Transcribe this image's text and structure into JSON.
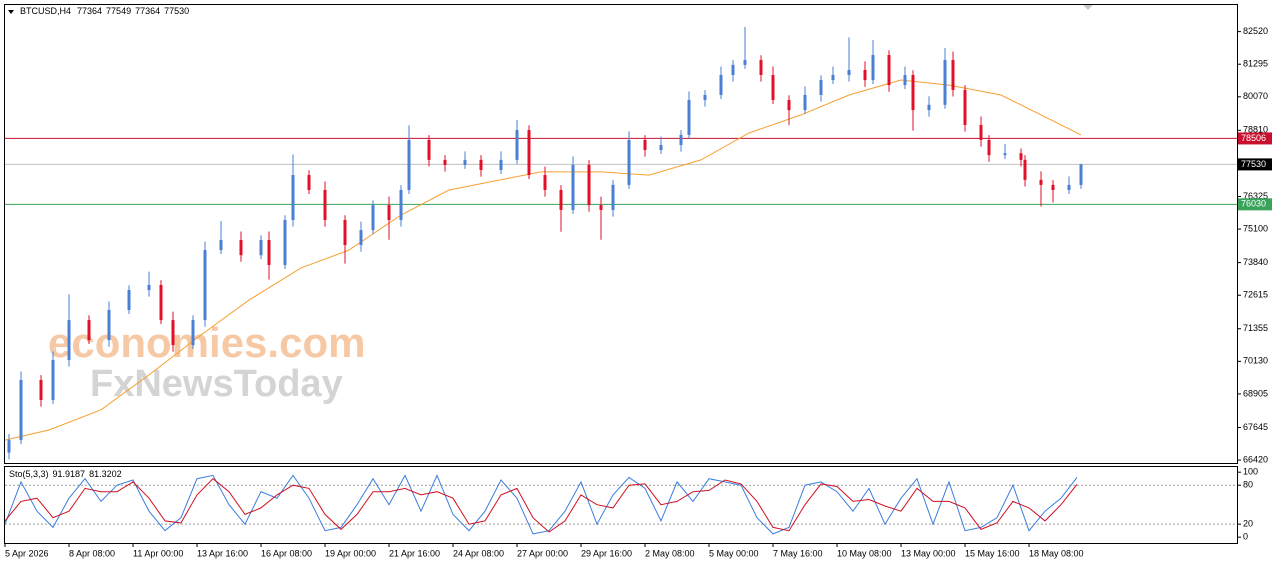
{
  "chart_data": [
    {
      "type": "candlestick",
      "title": "BTCUSD,H4",
      "header_values": [
        77364,
        77549,
        77364,
        77530
      ],
      "xlim": [
        0,
        308
      ],
      "xticks": [
        {
          "value": 0,
          "label": "5 Apr 2026"
        },
        {
          "value": 16,
          "label": "8 Apr 08:00"
        },
        {
          "value": 32,
          "label": "11 Apr 00:00"
        },
        {
          "value": 48,
          "label": "13 Apr 16:00"
        },
        {
          "value": 64,
          "label": "16 Apr 08:00"
        },
        {
          "value": 80,
          "label": "19 Apr 00:00"
        },
        {
          "value": 96,
          "label": "21 Apr 16:00"
        },
        {
          "value": 112,
          "label": "24 Apr 08:00"
        },
        {
          "value": 128,
          "label": "27 Apr 00:00"
        },
        {
          "value": 144,
          "label": "29 Apr 16:00"
        },
        {
          "value": 160,
          "label": "2 May 08:00"
        },
        {
          "value": 176,
          "label": "5 May 00:00"
        },
        {
          "value": 192,
          "label": "7 May 16:00"
        },
        {
          "value": 208,
          "label": "10 May 08:00"
        },
        {
          "value": 224,
          "label": "13 May 00:00"
        },
        {
          "value": 240,
          "label": "15 May 16:00"
        },
        {
          "value": 256,
          "label": "18 May 08:00"
        }
      ],
      "ylim": [
        66310,
        83520
      ],
      "yticks": [
        82520,
        81295,
        80070,
        78810,
        76325,
        75100,
        73840,
        72615,
        71355,
        70130,
        68905,
        67645,
        66420
      ],
      "up_color": "#4a7fd4",
      "down_color": "#e0102a",
      "x": [
        1,
        4,
        9,
        12,
        16,
        21,
        26,
        31,
        36,
        39,
        42,
        47,
        50,
        54,
        59,
        64,
        66,
        70,
        72,
        76,
        80,
        85,
        89,
        92,
        96,
        99,
        101,
        106,
        110,
        115,
        119,
        124,
        128,
        131,
        135,
        139,
        142,
        146,
        149,
        152,
        156,
        160,
        164,
        169,
        171,
        175,
        179,
        182,
        185,
        189,
        192,
        196,
        200,
        204,
        207,
        211,
        215,
        217,
        221,
        225,
        227,
        231,
        235,
        237,
        240,
        244,
        246,
        250,
        254,
        255,
        259,
        262,
        266,
        269
      ],
      "open": [
        66700,
        67170,
        69430,
        68680,
        70180,
        71680,
        70930,
        72060,
        72810,
        73000,
        71680,
        70740,
        71680,
        74310,
        74690,
        74120,
        74690,
        73750,
        75440,
        77130,
        76570,
        75440,
        74500,
        75060,
        76000,
        75440,
        76570,
        78450,
        77700,
        77510,
        77700,
        77320,
        77700,
        78820,
        77130,
        76570,
        75820,
        77510,
        76000,
        75820,
        76760,
        78450,
        78070,
        78260,
        78640,
        79950,
        80140,
        80890,
        81270,
        81450,
        80890,
        79950,
        79570,
        80140,
        80700,
        80890,
        81080,
        80700,
        81640,
        80510,
        80890,
        79570,
        79770,
        81450,
        80330,
        79010,
        78450,
        77880,
        77950,
        77700,
        76950,
        76760,
        76570,
        76760
      ],
      "high": [
        67400,
        69750,
        69610,
        70500,
        72650,
        71860,
        72380,
        72990,
        73500,
        73180,
        72000,
        71860,
        74630,
        75400,
        75010,
        74870,
        75010,
        75620,
        77900,
        77310,
        76890,
        75620,
        75380,
        76180,
        76320,
        76750,
        79000,
        78630,
        77880,
        78020,
        77880,
        78020,
        79200,
        79000,
        77450,
        76750,
        77830,
        77690,
        76320,
        76940,
        78770,
        78630,
        78580,
        78820,
        80270,
        80320,
        81210,
        81450,
        82700,
        81630,
        81210,
        80130,
        80460,
        80880,
        81210,
        82300,
        81400,
        82200,
        81820,
        81210,
        81070,
        80090,
        81900,
        81770,
        80510,
        79330,
        78630,
        78300,
        78130,
        77880,
        77270,
        76940,
        77080,
        77549
      ],
      "low": [
        66450,
        67020,
        68430,
        68530,
        69930,
        70780,
        70680,
        71910,
        72560,
        71530,
        70490,
        70590,
        71430,
        74160,
        73870,
        73970,
        73200,
        73600,
        75190,
        76420,
        75190,
        73800,
        74250,
        74910,
        74700,
        75190,
        76420,
        77450,
        77260,
        77360,
        77070,
        77170,
        77550,
        76980,
        76320,
        75000,
        75670,
        75750,
        74700,
        75570,
        76610,
        77820,
        77920,
        78010,
        78490,
        79700,
        79990,
        80640,
        81120,
        80640,
        79800,
        79000,
        79420,
        79890,
        80550,
        80640,
        80450,
        80550,
        80260,
        80360,
        78800,
        79320,
        79620,
        80080,
        78760,
        78200,
        77630,
        77730,
        77450,
        76700,
        75950,
        76100,
        76420,
        76610
      ],
      "close": [
        67170,
        69430,
        68680,
        70180,
        71680,
        70930,
        72060,
        72810,
        73000,
        71680,
        70740,
        71680,
        74310,
        74690,
        74120,
        74690,
        73750,
        75440,
        77130,
        76570,
        75440,
        74500,
        75060,
        76000,
        75440,
        76570,
        78450,
        77700,
        77510,
        77700,
        77320,
        77700,
        78820,
        77130,
        76570,
        75820,
        77510,
        76000,
        75820,
        76760,
        78450,
        78070,
        78260,
        78640,
        79950,
        80140,
        80890,
        81270,
        81450,
        80890,
        79950,
        79570,
        80140,
        80700,
        80890,
        81080,
        80700,
        81640,
        80510,
        80890,
        79570,
        79770,
        81450,
        80330,
        79010,
        78450,
        77880,
        77950,
        77700,
        76950,
        76760,
        76570,
        76760,
        77530
      ],
      "overlays": [
        {
          "type": "line",
          "color": "#f5a030",
          "x": [
            0,
            11,
            24,
            36,
            49,
            61,
            74,
            86,
            99,
            111,
            124,
            134,
            149,
            161,
            174,
            186,
            199,
            211,
            224,
            236,
            249,
            259,
            269
          ],
          "values": [
            67170,
            67550,
            68310,
            69620,
            71120,
            72430,
            73640,
            74310,
            75630,
            76570,
            76950,
            77250,
            77250,
            77130,
            77700,
            78710,
            79390,
            80140,
            80700,
            80510,
            80140,
            79390,
            78640
          ]
        }
      ],
      "hlines": [
        {
          "value": 78506,
          "color": "#c8102e",
          "box_color": "#c8102e"
        },
        {
          "value": 77530,
          "color": "#c0c0c0",
          "box_color": "#000000"
        },
        {
          "value": 76030,
          "color": "#3aa35a",
          "box_color": "#3aa35a"
        }
      ],
      "watermark": [
        "economies.com",
        "FxNewsToday"
      ]
    },
    {
      "type": "line",
      "title": "Sto(5,3,3)",
      "xlim": [
        0,
        308
      ],
      "ylim": [
        -9,
        108
      ],
      "yticks": [
        0,
        20,
        80,
        100
      ],
      "levels": [
        20,
        80
      ],
      "x": [
        0,
        4,
        8,
        12,
        16,
        20,
        24,
        28,
        32,
        36,
        40,
        44,
        48,
        52,
        56,
        60,
        64,
        68,
        72,
        76,
        80,
        84,
        88,
        92,
        96,
        100,
        104,
        108,
        112,
        116,
        120,
        124,
        128,
        132,
        136,
        140,
        144,
        148,
        152,
        156,
        160,
        164,
        168,
        172,
        176,
        180,
        184,
        188,
        192,
        196,
        200,
        204,
        208,
        212,
        216,
        220,
        224,
        228,
        232,
        236,
        240,
        244,
        248,
        252,
        256,
        260,
        264,
        268
      ],
      "series": [
        {
          "color": "#3b7ddd",
          "values": [
            20,
            85,
            40,
            15,
            60,
            90,
            55,
            80,
            88,
            40,
            10,
            30,
            90,
            95,
            50,
            20,
            70,
            60,
            95,
            60,
            10,
            15,
            50,
            90,
            50,
            95,
            40,
            95,
            35,
            10,
            40,
            88,
            60,
            5,
            10,
            40,
            85,
            20,
            65,
            92,
            75,
            25,
            85,
            55,
            90,
            85,
            80,
            30,
            5,
            15,
            80,
            85,
            70,
            40,
            75,
            20,
            60,
            90,
            20,
            85,
            10,
            15,
            30,
            80,
            10,
            40,
            60,
            91.9187
          ]
        },
        {
          "color": "#d01020",
          "values": [
            25,
            55,
            60,
            30,
            40,
            75,
            70,
            70,
            85,
            60,
            25,
            22,
            65,
            90,
            70,
            35,
            45,
            65,
            80,
            75,
            35,
            12,
            35,
            70,
            70,
            75,
            65,
            70,
            60,
            20,
            25,
            65,
            75,
            30,
            8,
            25,
            65,
            50,
            45,
            80,
            82,
            50,
            55,
            70,
            72,
            88,
            82,
            55,
            15,
            10,
            50,
            82,
            78,
            55,
            58,
            48,
            40,
            75,
            55,
            55,
            45,
            12,
            22,
            55,
            45,
            25,
            50,
            81.3202
          ]
        }
      ]
    }
  ]
}
